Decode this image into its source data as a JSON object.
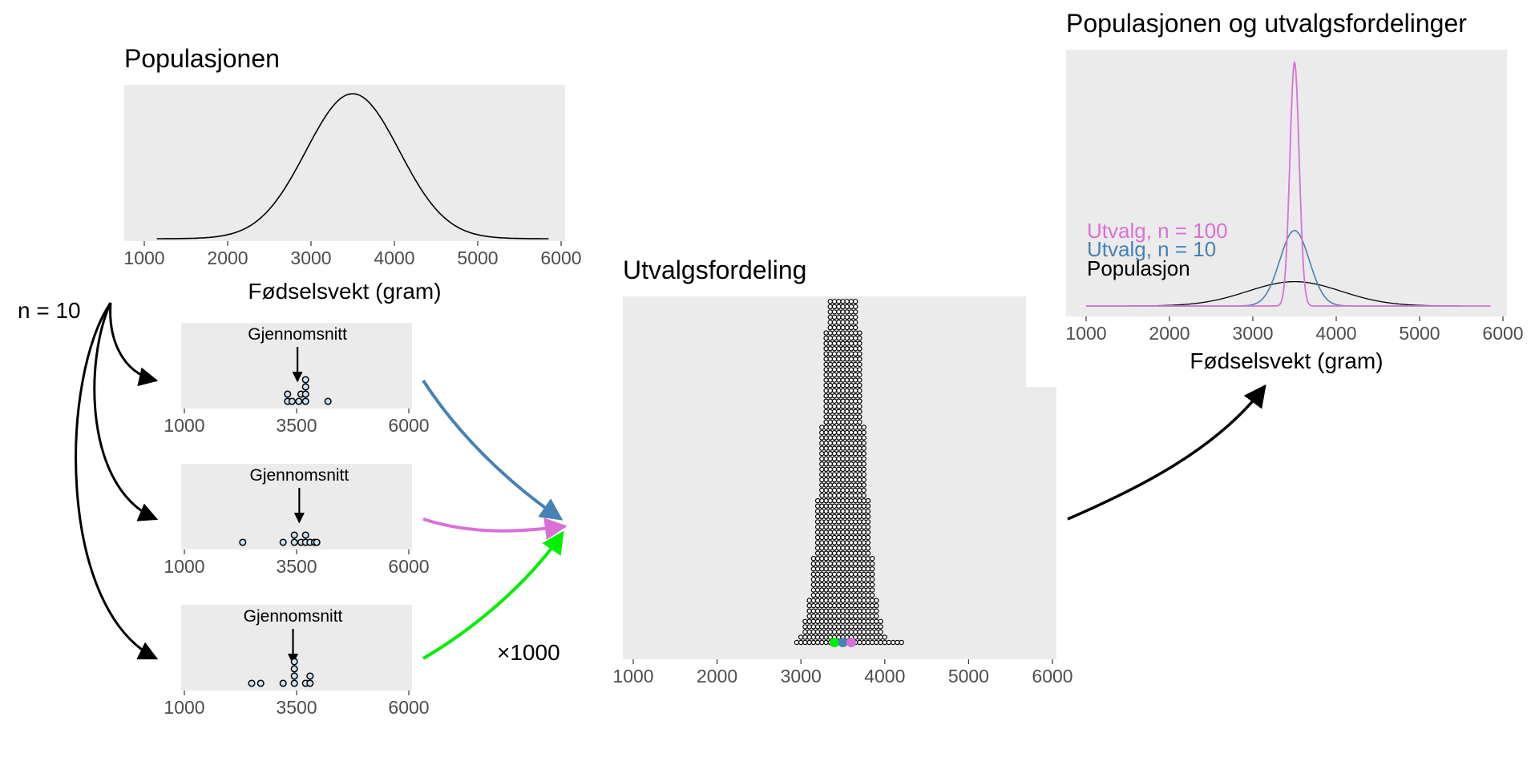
{
  "population_panel": {
    "title": "Populasjonen",
    "x_ticks": [
      "1000",
      "2000",
      "3000",
      "4000",
      "5000",
      "6000"
    ],
    "x_label": "Fødselsvekt (gram)"
  },
  "samples": {
    "n_label": "n = 10",
    "mean_label": "Gjennomsnitt",
    "x_ticks": [
      "1000",
      "3500",
      "6000"
    ],
    "repeat_label": "×1000"
  },
  "sampling_panel": {
    "title": "Utvalgsfordeling",
    "x_ticks": [
      "1000",
      "2000",
      "3000",
      "4000",
      "5000",
      "6000"
    ]
  },
  "comparison_panel": {
    "title": "Populasjonen og utvalgsfordelinger",
    "x_ticks": [
      "1000",
      "2000",
      "3000",
      "4000",
      "5000",
      "6000"
    ],
    "x_label": "Fødselsvekt (gram)",
    "legend": {
      "n100": "Utvalg, n = 100",
      "n10": "Utvalg, n = 10",
      "pop": "Populasjon"
    }
  },
  "chart_data": [
    {
      "type": "line",
      "description_role": "population density",
      "distribution": "normal",
      "mean": 3500,
      "sd": 560,
      "xlim": [
        1000,
        6000
      ],
      "x_range_drawn": [
        1150,
        5850
      ]
    },
    {
      "type": "scatter",
      "role": "sample 1 (n=10) dot plot",
      "values": [
        3300,
        3300,
        3400,
        3550,
        3600,
        3700,
        3700,
        3700,
        3700,
        4200
      ],
      "mean_marker": 3520,
      "xlim": [
        1000,
        6000
      ]
    },
    {
      "type": "scatter",
      "role": "sample 2 (n=10) dot plot",
      "values": [
        2300,
        3200,
        3450,
        3450,
        3600,
        3700,
        3700,
        3800,
        3900,
        3950
      ],
      "mean_marker": 3560,
      "xlim": [
        1000,
        6000
      ]
    },
    {
      "type": "scatter",
      "role": "sample 3 (n=10) dot plot",
      "values": [
        2500,
        2700,
        3200,
        3450,
        3450,
        3450,
        3450,
        3700,
        3800,
        3800
      ],
      "mean_marker": 3420,
      "xlim": [
        1000,
        6000
      ]
    },
    {
      "type": "scatter",
      "role": "sampling distribution of 1000 means (stacked dot plot)",
      "n_dots": 1000,
      "center": 3500,
      "sd": 180,
      "xlim": [
        1000,
        6000
      ],
      "highlighted_means": [
        {
          "value": 3400,
          "color": "#00ee00"
        },
        {
          "value": 3500,
          "color": "#4682b4"
        },
        {
          "value": 3600,
          "color": "#da70d6"
        }
      ]
    },
    {
      "type": "line",
      "role": "densities comparison",
      "xlim": [
        1000,
        6000
      ],
      "series": [
        {
          "name": "Utvalg, n = 100",
          "mean": 3500,
          "sd": 56,
          "color": "#da70d6",
          "x_range": [
            1000,
            5850
          ]
        },
        {
          "name": "Utvalg, n = 10",
          "mean": 3500,
          "sd": 177,
          "color": "#4682b4",
          "x_range": [
            1000,
            5500
          ]
        },
        {
          "name": "Populasjon",
          "mean": 3500,
          "sd": 560,
          "color": "#000000",
          "x_range": [
            1500,
            5500
          ]
        }
      ]
    }
  ],
  "colors": {
    "panel_bg": "#ebebeb",
    "arrow_blue": "#4682b4",
    "arrow_pink": "#da70d6",
    "arrow_green": "#00ee00",
    "dot_fill": "#cfe3f3"
  }
}
